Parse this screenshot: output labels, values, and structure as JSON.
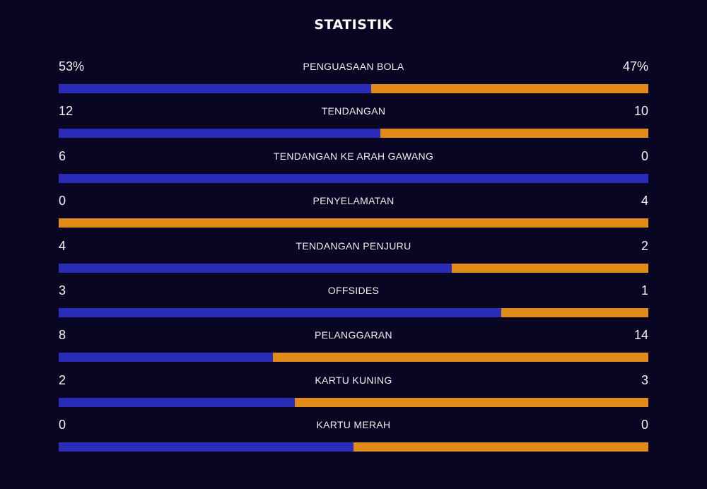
{
  "title": "STATISTIK",
  "colors": {
    "background": "#080622",
    "home": "#2b2db8",
    "away": "#e28a17"
  },
  "stats": [
    {
      "label": "PENGUASAAN BOLA",
      "home": "53%",
      "away": "47%",
      "home_value": 53,
      "away_value": 47
    },
    {
      "label": "TENDANGAN",
      "home": "12",
      "away": "10",
      "home_value": 12,
      "away_value": 10
    },
    {
      "label": "TENDANGAN KE ARAH GAWANG",
      "home": "6",
      "away": "0",
      "home_value": 6,
      "away_value": 0
    },
    {
      "label": "PENYELAMATAN",
      "home": "0",
      "away": "4",
      "home_value": 0,
      "away_value": 4
    },
    {
      "label": "TENDANGAN PENJURU",
      "home": "4",
      "away": "2",
      "home_value": 4,
      "away_value": 2
    },
    {
      "label": "OFFSIDES",
      "home": "3",
      "away": "1",
      "home_value": 3,
      "away_value": 1
    },
    {
      "label": "PELANGGARAN",
      "home": "8",
      "away": "14",
      "home_value": 8,
      "away_value": 14
    },
    {
      "label": "KARTU KUNING",
      "home": "2",
      "away": "3",
      "home_value": 2,
      "away_value": 3
    },
    {
      "label": "KARTU MERAH",
      "home": "0",
      "away": "0",
      "home_value": 0,
      "away_value": 0
    }
  ]
}
